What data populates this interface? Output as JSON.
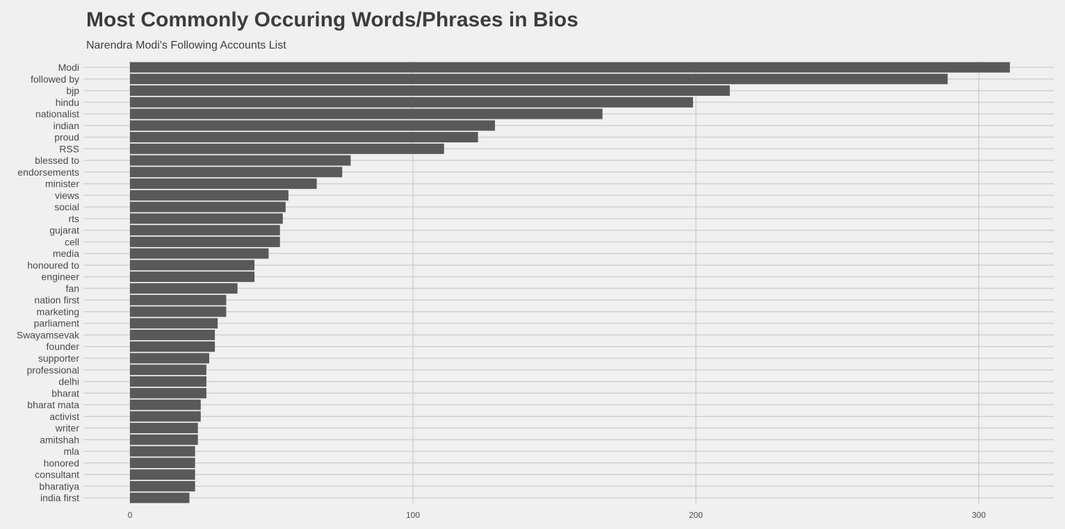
{
  "chart_data": {
    "type": "bar",
    "orientation": "horizontal",
    "title": "Most Commonly Occuring Words/Phrases in Bios",
    "subtitle": "Narendra Modi's Following Accounts List",
    "xlabel": "",
    "ylabel": "",
    "xlim": [
      0,
      325
    ],
    "x_ticks": [
      0,
      100,
      200,
      300
    ],
    "grid": true,
    "legend": "none",
    "bar_color": "#595959",
    "grid_color": "#d2d2d2",
    "background_color": "#f0f0f0",
    "categories": [
      "Modi",
      "followed by",
      "bjp",
      "hindu",
      "nationalist",
      "indian",
      "proud",
      "RSS",
      "blessed to",
      "endorsements",
      "minister",
      "views",
      "social",
      "rts",
      "gujarat",
      "cell",
      "media",
      "honoured to",
      "engineer",
      "fan",
      "nation first",
      "marketing",
      "parliament",
      "Swayamsevak",
      "founder",
      "supporter",
      "professional",
      "delhi",
      "bharat",
      "bharat mata",
      "activist",
      "writer",
      "amitshah",
      "mla",
      "honored",
      "consultant",
      "bharatiya",
      "india first"
    ],
    "values": [
      311,
      289,
      212,
      199,
      167,
      129,
      123,
      111,
      78,
      75,
      66,
      56,
      55,
      54,
      53,
      53,
      49,
      44,
      44,
      38,
      34,
      34,
      31,
      30,
      30,
      28,
      27,
      27,
      27,
      25,
      25,
      24,
      24,
      23,
      23,
      23,
      23,
      21
    ]
  }
}
